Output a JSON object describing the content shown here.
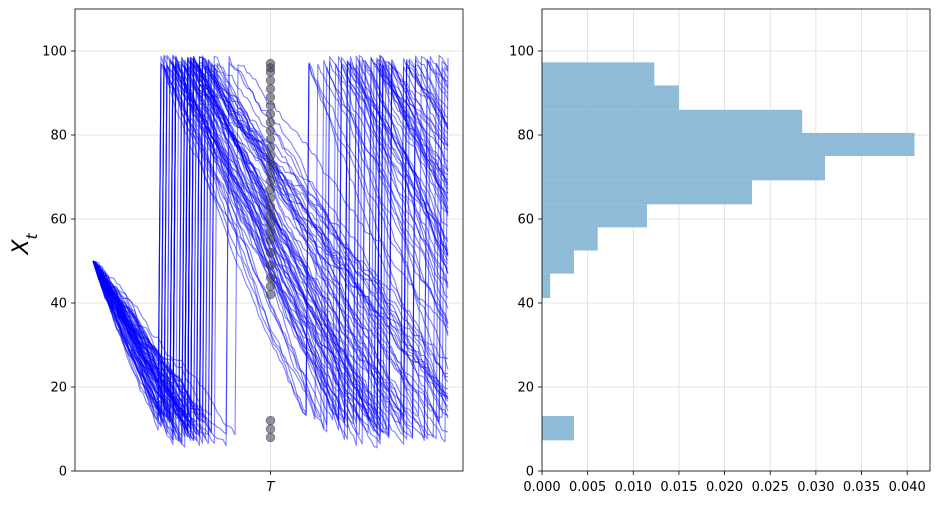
{
  "chart_data": [
    {
      "type": "line",
      "ylabel": "X_t",
      "ylim": [
        0,
        110
      ],
      "yticks": [
        0,
        20,
        40,
        60,
        80,
        100
      ],
      "xticks": [
        "T"
      ],
      "grid": true,
      "series_color": "#0000ff",
      "marker_color": "#3a3a52",
      "line_alpha": 0.5,
      "num_paths": 80,
      "start_value": 50,
      "decline_per_step": 1.3,
      "reset_range": [
        96,
        99
      ],
      "reset_threshold": 9,
      "steps": 120,
      "t_index": 60,
      "observed_values_at_T": [
        97,
        96,
        95,
        93,
        91,
        89,
        87,
        85,
        83,
        81,
        79,
        77,
        75,
        73,
        71,
        69,
        67,
        65,
        63,
        61,
        59,
        57,
        55,
        52,
        49,
        46,
        44,
        42,
        12,
        10,
        8
      ]
    },
    {
      "type": "histogram",
      "orientation": "horizontal",
      "ylim": [
        0,
        110
      ],
      "yticks": [
        0,
        20,
        40,
        60,
        80,
        100
      ],
      "xlim": [
        0,
        0.0425
      ],
      "xticks": [
        "0.000",
        "0.005",
        "0.010",
        "0.015",
        "0.020",
        "0.025",
        "0.030",
        "0.035",
        "0.040"
      ],
      "xtick_values": [
        0,
        0.005,
        0.01,
        0.015,
        0.02,
        0.025,
        0.03,
        0.035,
        0.04
      ],
      "bar_color": "#8fbbd9",
      "grid": true,
      "bins": [
        {
          "low": 7.3,
          "high": 13.1,
          "density": 0.0035
        },
        {
          "low": 13.1,
          "high": 18.9,
          "density": 0
        },
        {
          "low": 18.9,
          "high": 24.7,
          "density": 0
        },
        {
          "low": 24.7,
          "high": 30.5,
          "density": 0
        },
        {
          "low": 30.5,
          "high": 36.3,
          "density": 0
        },
        {
          "low": 36.3,
          "high": 41.2,
          "density": 0
        },
        {
          "low": 41.2,
          "high": 47.0,
          "density": 0.0009
        },
        {
          "low": 47.0,
          "high": 52.5,
          "density": 0.0035
        },
        {
          "low": 52.5,
          "high": 58.0,
          "density": 0.0061
        },
        {
          "low": 58.0,
          "high": 63.5,
          "density": 0.0115
        },
        {
          "low": 63.5,
          "high": 69.2,
          "density": 0.023
        },
        {
          "low": 69.2,
          "high": 75.0,
          "density": 0.031
        },
        {
          "low": 75.0,
          "high": 80.5,
          "density": 0.0408
        },
        {
          "low": 80.5,
          "high": 86.0,
          "density": 0.0285
        },
        {
          "low": 86.0,
          "high": 91.8,
          "density": 0.015
        },
        {
          "low": 91.8,
          "high": 97.3,
          "density": 0.0123
        }
      ]
    }
  ]
}
